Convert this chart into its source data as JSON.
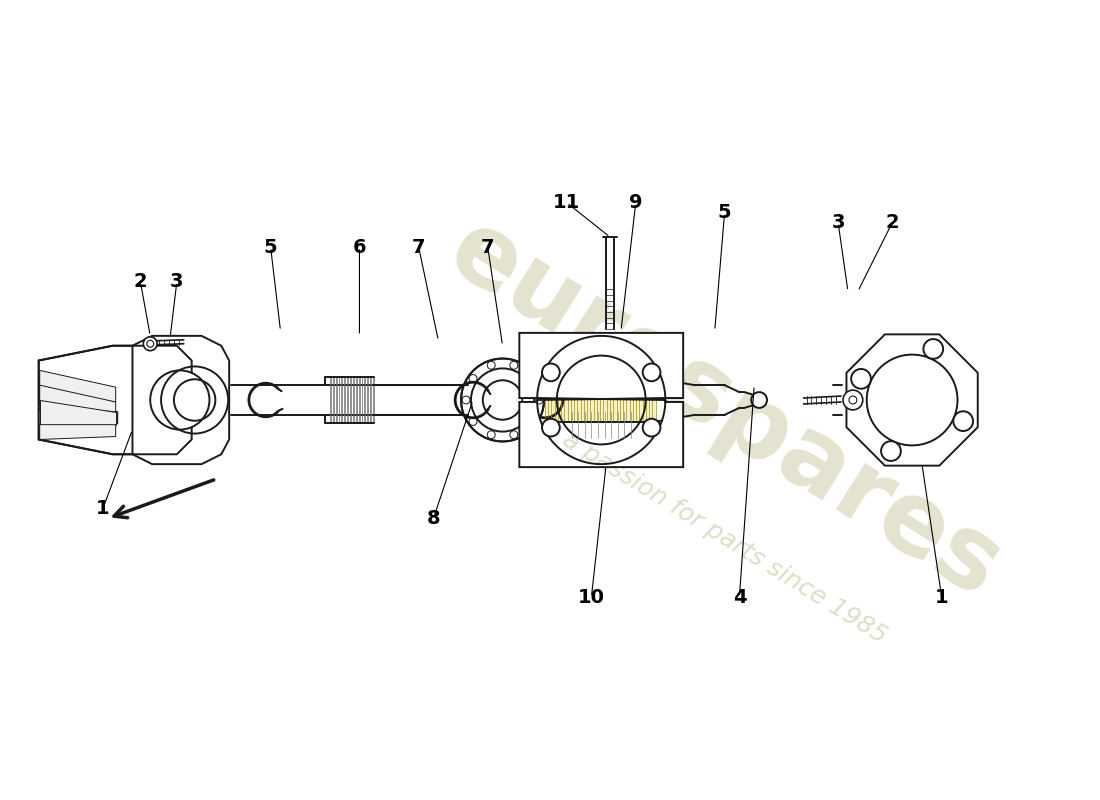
{
  "bg_color": "#ffffff",
  "line_color": "#1a1a1a",
  "watermark_text1": "eurospares",
  "watermark_text2": "a passion for parts since 1985",
  "wm_color": "#c8c8a0",
  "fig_w": 11.0,
  "fig_h": 8.0,
  "dpi": 100
}
